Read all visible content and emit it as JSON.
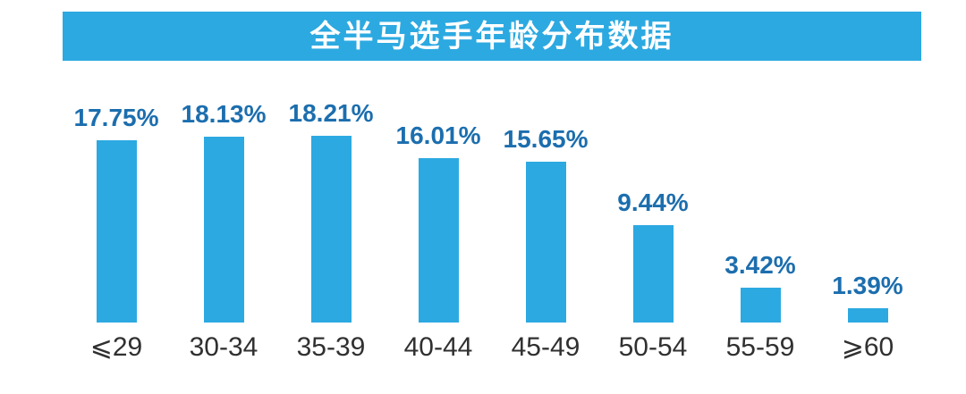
{
  "chart_data": {
    "type": "bar",
    "title": "全半马选手年龄分布数据",
    "categories": [
      "⩽29",
      "30-34",
      "35-39",
      "40-44",
      "45-49",
      "50-54",
      "55-59",
      "⩾60"
    ],
    "values": [
      17.75,
      18.13,
      18.21,
      16.01,
      15.65,
      9.44,
      3.42,
      1.39
    ],
    "value_labels": [
      "17.75%",
      "18.13%",
      "18.21%",
      "16.01%",
      "15.65%",
      "9.44%",
      "3.42%",
      "1.39%"
    ],
    "xlabel": "",
    "ylabel": "",
    "ylim": [
      0,
      20
    ],
    "grid": false,
    "legend": null,
    "axes_lines": false,
    "colors": {
      "bar": "#2CA9E1",
      "value_label": "#1C6EAE",
      "title_background": "#2CA9E1",
      "title_text": "#FFFFFF",
      "axis_label": "#303030",
      "background": "#FFFFFF"
    }
  }
}
